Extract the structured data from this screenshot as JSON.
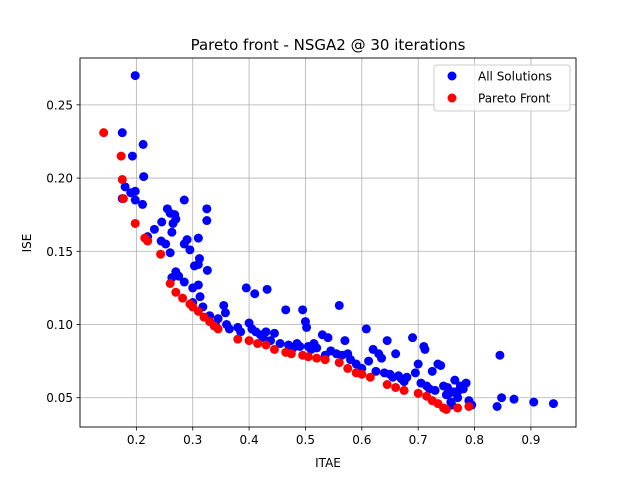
{
  "chart_data": {
    "type": "scatter",
    "title": "Pareto front - NSGA2 @ 30 iterations",
    "xlabel": "ITAE",
    "ylabel": "ISE",
    "xlim": [
      0.1,
      0.98
    ],
    "ylim": [
      0.03,
      0.282
    ],
    "xticks": [
      "0.2",
      "0.3",
      "0.4",
      "0.5",
      "0.6",
      "0.7",
      "0.8",
      "0.9"
    ],
    "yticks": [
      "0.05",
      "0.10",
      "0.15",
      "0.20",
      "0.25"
    ],
    "grid": true,
    "legend_position": "top-right",
    "series": [
      {
        "name": "All Solutions",
        "color": "#0000ff",
        "points": [
          [
            0.198,
            0.27
          ],
          [
            0.175,
            0.231
          ],
          [
            0.212,
            0.223
          ],
          [
            0.193,
            0.215
          ],
          [
            0.213,
            0.201
          ],
          [
            0.18,
            0.194
          ],
          [
            0.19,
            0.19
          ],
          [
            0.198,
            0.191
          ],
          [
            0.198,
            0.185
          ],
          [
            0.211,
            0.182
          ],
          [
            0.175,
            0.186
          ],
          [
            0.285,
            0.185
          ],
          [
            0.325,
            0.179
          ],
          [
            0.325,
            0.171
          ],
          [
            0.255,
            0.179
          ],
          [
            0.26,
            0.176
          ],
          [
            0.268,
            0.175
          ],
          [
            0.27,
            0.172
          ],
          [
            0.265,
            0.169
          ],
          [
            0.245,
            0.17
          ],
          [
            0.263,
            0.163
          ],
          [
            0.232,
            0.165
          ],
          [
            0.22,
            0.16
          ],
          [
            0.244,
            0.157
          ],
          [
            0.252,
            0.155
          ],
          [
            0.29,
            0.158
          ],
          [
            0.285,
            0.155
          ],
          [
            0.31,
            0.159
          ],
          [
            0.295,
            0.151
          ],
          [
            0.26,
            0.149
          ],
          [
            0.312,
            0.145
          ],
          [
            0.31,
            0.141
          ],
          [
            0.303,
            0.14
          ],
          [
            0.326,
            0.137
          ],
          [
            0.27,
            0.136
          ],
          [
            0.275,
            0.133
          ],
          [
            0.263,
            0.132
          ],
          [
            0.285,
            0.129
          ],
          [
            0.3,
            0.125
          ],
          [
            0.31,
            0.127
          ],
          [
            0.313,
            0.119
          ],
          [
            0.3,
            0.115
          ],
          [
            0.318,
            0.112
          ],
          [
            0.33,
            0.106
          ],
          [
            0.355,
            0.113
          ],
          [
            0.358,
            0.108
          ],
          [
            0.345,
            0.104
          ],
          [
            0.34,
            0.1
          ],
          [
            0.36,
            0.1
          ],
          [
            0.365,
            0.097
          ],
          [
            0.395,
            0.125
          ],
          [
            0.41,
            0.121
          ],
          [
            0.432,
            0.124
          ],
          [
            0.38,
            0.098
          ],
          [
            0.385,
            0.095
          ],
          [
            0.4,
            0.101
          ],
          [
            0.405,
            0.097
          ],
          [
            0.412,
            0.095
          ],
          [
            0.42,
            0.093
          ],
          [
            0.425,
            0.091
          ],
          [
            0.43,
            0.095
          ],
          [
            0.438,
            0.089
          ],
          [
            0.445,
            0.094
          ],
          [
            0.455,
            0.087
          ],
          [
            0.465,
            0.11
          ],
          [
            0.47,
            0.086
          ],
          [
            0.478,
            0.084
          ],
          [
            0.485,
            0.087
          ],
          [
            0.49,
            0.085
          ],
          [
            0.495,
            0.11
          ],
          [
            0.5,
            0.102
          ],
          [
            0.502,
            0.098
          ],
          [
            0.505,
            0.085
          ],
          [
            0.51,
            0.083
          ],
          [
            0.515,
            0.087
          ],
          [
            0.52,
            0.084
          ],
          [
            0.53,
            0.093
          ],
          [
            0.535,
            0.079
          ],
          [
            0.54,
            0.091
          ],
          [
            0.545,
            0.082
          ],
          [
            0.555,
            0.08
          ],
          [
            0.56,
            0.113
          ],
          [
            0.565,
            0.079
          ],
          [
            0.57,
            0.089
          ],
          [
            0.575,
            0.08
          ],
          [
            0.58,
            0.076
          ],
          [
            0.59,
            0.073
          ],
          [
            0.6,
            0.07
          ],
          [
            0.608,
            0.097
          ],
          [
            0.612,
            0.075
          ],
          [
            0.62,
            0.083
          ],
          [
            0.625,
            0.068
          ],
          [
            0.63,
            0.08
          ],
          [
            0.635,
            0.077
          ],
          [
            0.64,
            0.067
          ],
          [
            0.645,
            0.089
          ],
          [
            0.65,
            0.066
          ],
          [
            0.655,
            0.064
          ],
          [
            0.66,
            0.08
          ],
          [
            0.665,
            0.065
          ],
          [
            0.67,
            0.063
          ],
          [
            0.675,
            0.061
          ],
          [
            0.68,
            0.064
          ],
          [
            0.69,
            0.091
          ],
          [
            0.695,
            0.067
          ],
          [
            0.7,
            0.073
          ],
          [
            0.705,
            0.06
          ],
          [
            0.71,
            0.085
          ],
          [
            0.712,
            0.083
          ],
          [
            0.715,
            0.058
          ],
          [
            0.72,
            0.056
          ],
          [
            0.725,
            0.068
          ],
          [
            0.73,
            0.055
          ],
          [
            0.735,
            0.073
          ],
          [
            0.74,
            0.072
          ],
          [
            0.745,
            0.058
          ],
          [
            0.75,
            0.052
          ],
          [
            0.752,
            0.057
          ],
          [
            0.755,
            0.053
          ],
          [
            0.758,
            0.047
          ],
          [
            0.762,
            0.054
          ],
          [
            0.765,
            0.062
          ],
          [
            0.77,
            0.05
          ],
          [
            0.772,
            0.055
          ],
          [
            0.775,
            0.058
          ],
          [
            0.78,
            0.056
          ],
          [
            0.785,
            0.06
          ],
          [
            0.79,
            0.048
          ],
          [
            0.795,
            0.045
          ],
          [
            0.76,
            0.045
          ],
          [
            0.84,
            0.044
          ],
          [
            0.845,
            0.079
          ],
          [
            0.848,
            0.05
          ],
          [
            0.87,
            0.049
          ],
          [
            0.905,
            0.047
          ],
          [
            0.94,
            0.046
          ]
        ]
      },
      {
        "name": "Pareto Front",
        "color": "#ff0000",
        "points": [
          [
            0.142,
            0.231
          ],
          [
            0.173,
            0.215
          ],
          [
            0.175,
            0.199
          ],
          [
            0.177,
            0.186
          ],
          [
            0.198,
            0.169
          ],
          [
            0.215,
            0.159
          ],
          [
            0.22,
            0.157
          ],
          [
            0.243,
            0.148
          ],
          [
            0.26,
            0.128
          ],
          [
            0.27,
            0.122
          ],
          [
            0.282,
            0.118
          ],
          [
            0.295,
            0.114
          ],
          [
            0.3,
            0.112
          ],
          [
            0.31,
            0.109
          ],
          [
            0.32,
            0.105
          ],
          [
            0.33,
            0.102
          ],
          [
            0.338,
            0.099
          ],
          [
            0.345,
            0.097
          ],
          [
            0.38,
            0.09
          ],
          [
            0.4,
            0.089
          ],
          [
            0.415,
            0.087
          ],
          [
            0.43,
            0.086
          ],
          [
            0.445,
            0.083
          ],
          [
            0.465,
            0.081
          ],
          [
            0.475,
            0.08
          ],
          [
            0.495,
            0.079
          ],
          [
            0.505,
            0.078
          ],
          [
            0.52,
            0.077
          ],
          [
            0.535,
            0.076
          ],
          [
            0.56,
            0.074
          ],
          [
            0.575,
            0.07
          ],
          [
            0.59,
            0.067
          ],
          [
            0.6,
            0.066
          ],
          [
            0.615,
            0.064
          ],
          [
            0.645,
            0.059
          ],
          [
            0.66,
            0.057
          ],
          [
            0.675,
            0.055
          ],
          [
            0.7,
            0.053
          ],
          [
            0.715,
            0.051
          ],
          [
            0.725,
            0.048
          ],
          [
            0.735,
            0.046
          ],
          [
            0.745,
            0.043
          ],
          [
            0.75,
            0.042
          ],
          [
            0.77,
            0.043
          ],
          [
            0.79,
            0.044
          ]
        ]
      }
    ]
  }
}
